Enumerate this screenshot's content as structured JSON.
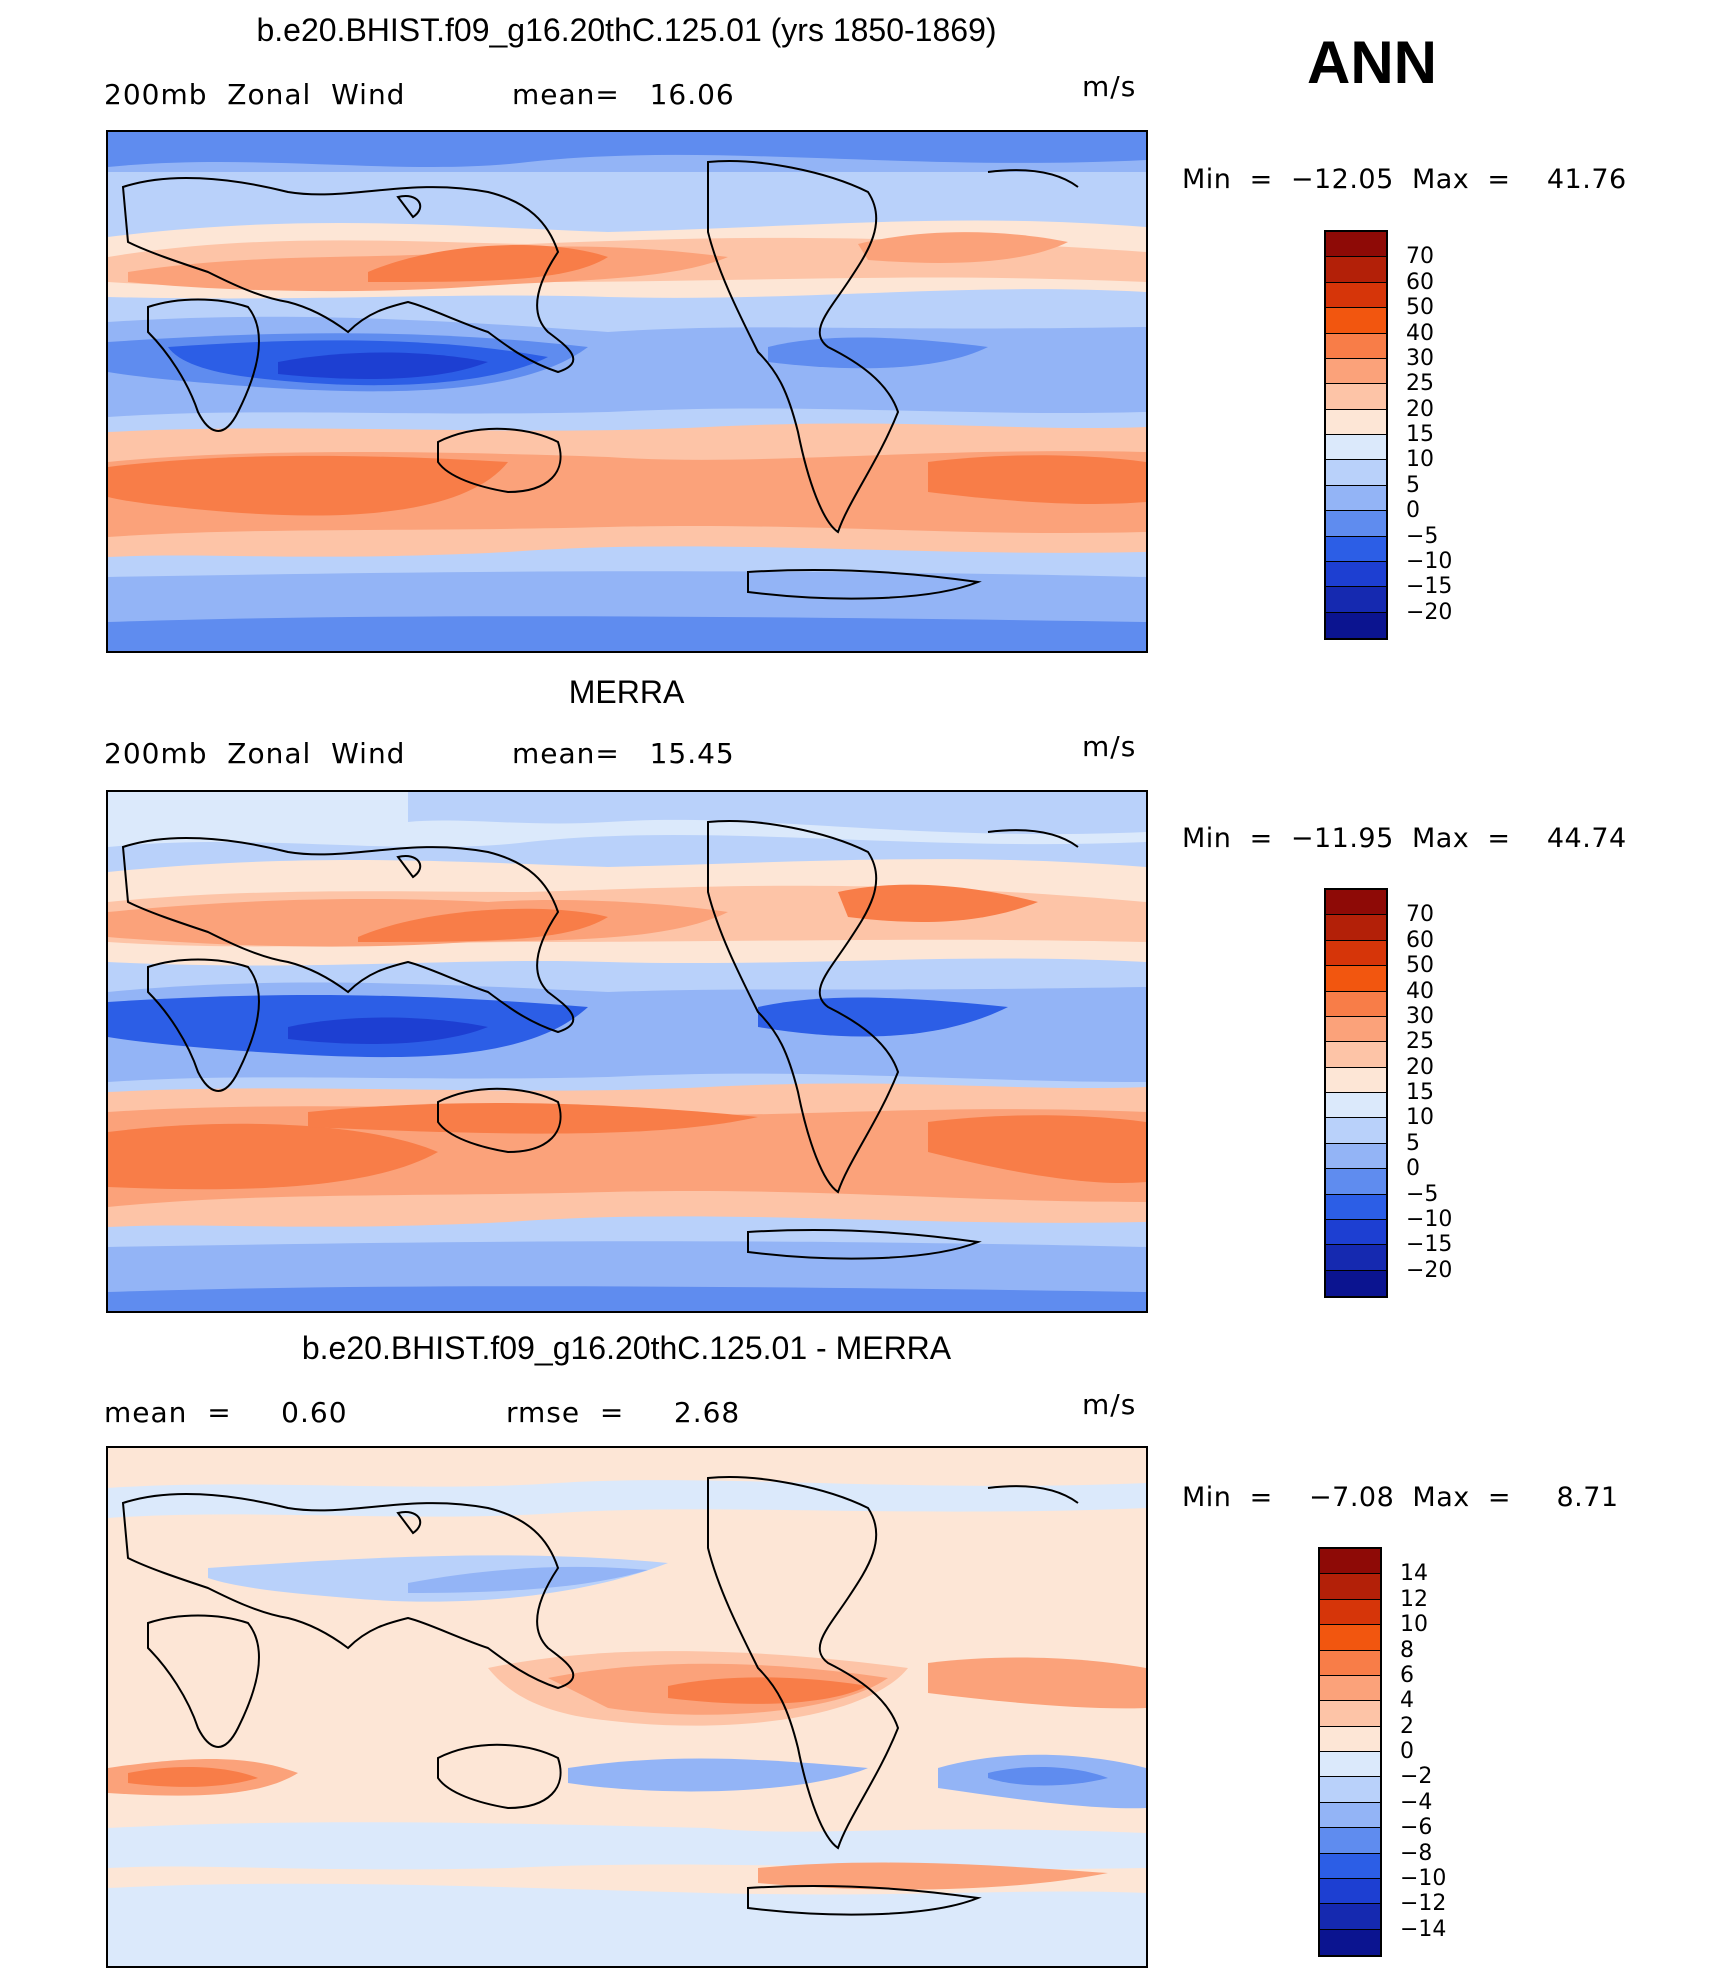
{
  "season": "ANN",
  "panels": [
    {
      "title": "b.e20.BHIST.f09_g16.20thC.125.01 (yrs 1850-1869)",
      "left_label": "200mb  Zonal  Wind",
      "mid_label": "mean=   16.06",
      "units": "m/s",
      "minmax": "Min  =  −12.05  Max  =    41.76",
      "colorbar": {
        "labels": [
          "70",
          "60",
          "50",
          "40",
          "30",
          "25",
          "20",
          "15",
          "10",
          "5",
          "0",
          "−5",
          "−10",
          "−15",
          "−20"
        ],
        "colors": [
          "#8e0a06",
          "#b32008",
          "#d63509",
          "#f2560f",
          "#f87d48",
          "#fba27a",
          "#fdc4a7",
          "#fde6d6",
          "#dbe9fb",
          "#b9d1fa",
          "#93b4f6",
          "#5f8cef",
          "#2c5ee6",
          "#1d3fd2",
          "#1529b0",
          "#0b1490"
        ]
      },
      "data_range": {
        "min": -12.05,
        "max": 41.76,
        "mean": 16.06
      }
    },
    {
      "title": "MERRA",
      "left_label": "200mb  Zonal  Wind",
      "mid_label": "mean=   15.45",
      "units": "m/s",
      "minmax": "Min  =  −11.95  Max  =    44.74",
      "colorbar": {
        "labels": [
          "70",
          "60",
          "50",
          "40",
          "30",
          "25",
          "20",
          "15",
          "10",
          "5",
          "0",
          "−5",
          "−10",
          "−15",
          "−20"
        ],
        "colors": [
          "#8e0a06",
          "#b32008",
          "#d63509",
          "#f2560f",
          "#f87d48",
          "#fba27a",
          "#fdc4a7",
          "#fde6d6",
          "#dbe9fb",
          "#b9d1fa",
          "#93b4f6",
          "#5f8cef",
          "#2c5ee6",
          "#1d3fd2",
          "#1529b0",
          "#0b1490"
        ]
      },
      "data_range": {
        "min": -11.95,
        "max": 44.74,
        "mean": 15.45
      }
    },
    {
      "title": "b.e20.BHIST.f09_g16.20thC.125.01 - MERRA",
      "left_label": "mean  =     0.60",
      "mid_label": "rmse  =     2.68",
      "units": "m/s",
      "minmax": "Min  =    −7.08  Max  =     8.71",
      "colorbar": {
        "labels": [
          "14",
          "12",
          "10",
          "8",
          "6",
          "4",
          "2",
          "0",
          "−2",
          "−4",
          "−6",
          "−8",
          "−10",
          "−12",
          "−14"
        ],
        "colors": [
          "#8e0a06",
          "#b32008",
          "#d63509",
          "#f2560f",
          "#f87d48",
          "#fba27a",
          "#fdc4a7",
          "#fde6d6",
          "#dbe9fb",
          "#b9d1fa",
          "#93b4f6",
          "#5f8cef",
          "#2c5ee6",
          "#1d3fd2",
          "#1529b0",
          "#0b1490"
        ]
      },
      "data_range": {
        "min": -7.08,
        "max": 8.71,
        "mean": 0.6,
        "rmse": 2.68
      }
    }
  ]
}
